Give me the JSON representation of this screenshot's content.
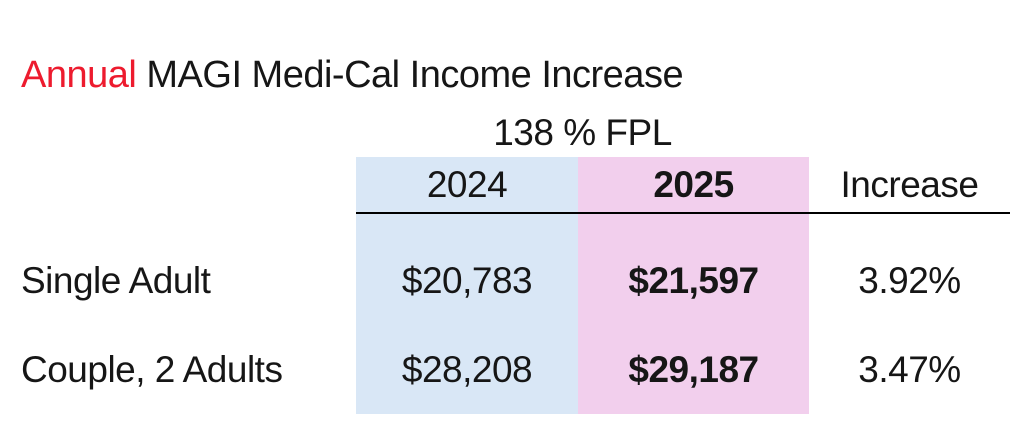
{
  "title": {
    "highlight": "Annual",
    "rest": " MAGI Medi-Cal Income Increase"
  },
  "subtitle": "138 % FPL",
  "table": {
    "columns": {
      "label": "",
      "y2024": "2024",
      "y2025": "2025",
      "increase": "Increase"
    },
    "rows": [
      {
        "label": "Single Adult",
        "y2024": "$20,783",
        "y2025": "$21,597",
        "increase": "3.92%"
      },
      {
        "label": "Couple, 2 Adults",
        "y2024": "$28,208",
        "y2025": "$29,187",
        "increase": "3.47%"
      }
    ]
  },
  "chart_data": {
    "type": "table",
    "title": "Annual MAGI Medi-Cal Income Increase",
    "subtitle": "138 % FPL",
    "columns": [
      "",
      "2024",
      "2025",
      "Increase"
    ],
    "rows": [
      [
        "Single Adult",
        "$20,783",
        "$21,597",
        "3.92%"
      ],
      [
        "Couple, 2 Adults",
        "$28,208",
        "$29,187",
        "3.47%"
      ]
    ],
    "values": {
      "single_adult": {
        "2024": 20783,
        "2025": 21597,
        "increase_pct": 3.92
      },
      "couple_2_adults": {
        "2024": 28208,
        "2025": 29187,
        "increase_pct": 3.47
      }
    }
  },
  "colors": {
    "col_2024_bg": "#D9E7F6",
    "col_2025_bg": "#F2CFED",
    "title_accent": "#ED1B2E",
    "text_color": "#161616",
    "rule_color": "#000000"
  }
}
